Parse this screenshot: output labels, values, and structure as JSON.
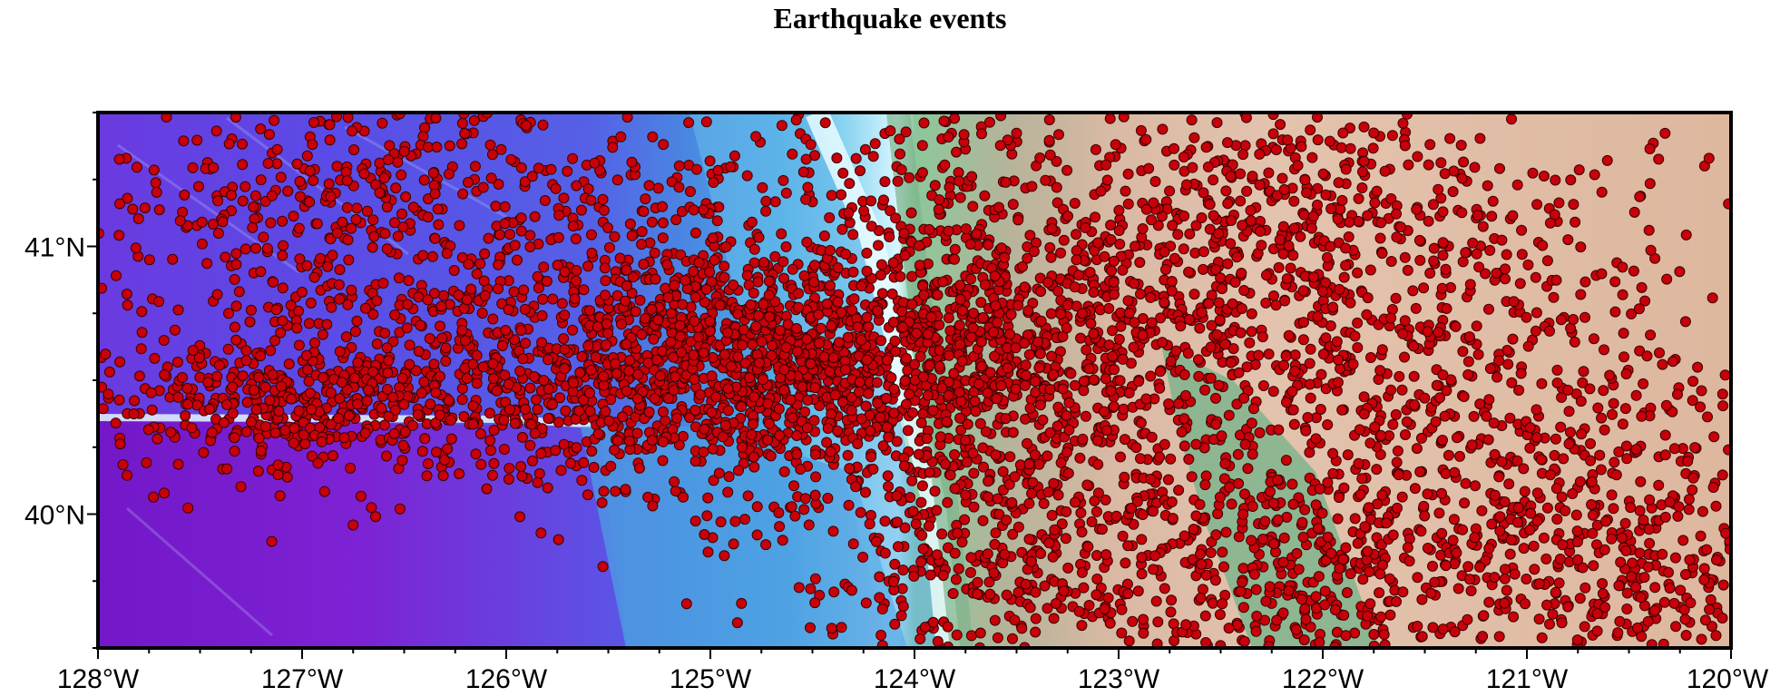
{
  "title": "Earthquake events",
  "x_axis": {
    "labels": [
      "128°W",
      "127°W",
      "126°W",
      "125°W",
      "124°W",
      "123°W",
      "122°W",
      "121°W",
      "120°W"
    ],
    "values": [
      -128,
      -127,
      -126,
      -125,
      -124,
      -123,
      -122,
      -121,
      -120
    ],
    "range": [
      -128,
      -120
    ]
  },
  "y_axis": {
    "labels": [
      "40°N",
      "41°N"
    ],
    "values": [
      40,
      41
    ],
    "range": [
      39.5,
      41.5
    ]
  },
  "colors": {
    "point_fill": "#c8000a",
    "point_stroke": "#3a0000",
    "deep_ocean": "#7a1fd0",
    "ocean_blue": "#5a50e8",
    "shelf": "#48a6e0",
    "shallow": "#d8f6ff",
    "lowland": "#7bb08a",
    "upland": "#d7b49b"
  },
  "legend": "none",
  "grid": false,
  "chart_data": {
    "type": "scatter",
    "title": "Earthquake events",
    "xlabel": "",
    "ylabel": "",
    "xlim": [
      -128,
      -120
    ],
    "ylim": [
      39.5,
      41.5
    ],
    "series": [
      {
        "clusters": [
          {
            "center": [
              -124.6,
              40.55
            ],
            "spread": [
              0.9,
              0.22
            ],
            "count": 1600
          },
          {
            "center": [
              -126.2,
              40.5
            ],
            "spread": [
              0.9,
              0.2
            ],
            "count": 450
          },
          {
            "center": [
              -127.2,
              40.4
            ],
            "spread": [
              0.5,
              0.1
            ],
            "count": 250
          },
          {
            "center": [
              -125.6,
              41.1
            ],
            "spread": [
              1.2,
              0.3
            ],
            "count": 550
          },
          {
            "center": [
              -123.3,
              40.8
            ],
            "spread": [
              0.7,
              0.45
            ],
            "count": 700
          },
          {
            "center": [
              -122.0,
              41.1
            ],
            "spread": [
              0.4,
              0.35
            ],
            "count": 350
          },
          {
            "center": [
              -121.1,
              40.2
            ],
            "spread": [
              1.0,
              0.35
            ],
            "count": 650
          },
          {
            "center": [
              -123.5,
              39.8
            ],
            "spread": [
              0.6,
              0.3
            ],
            "count": 500
          },
          {
            "center": [
              -122.0,
              39.8
            ],
            "spread": [
              0.45,
              0.2
            ],
            "count": 280
          },
          {
            "center": [
              -120.6,
              39.75
            ],
            "spread": [
              0.5,
              0.2
            ],
            "count": 250
          },
          {
            "center": [
              -121.0,
              41.0
            ],
            "spread": [
              0.9,
              0.35
            ],
            "count": 250
          },
          {
            "center": [
              -126.8,
              41.2
            ],
            "spread": [
              0.6,
              0.25
            ],
            "count": 200
          }
        ]
      }
    ]
  }
}
